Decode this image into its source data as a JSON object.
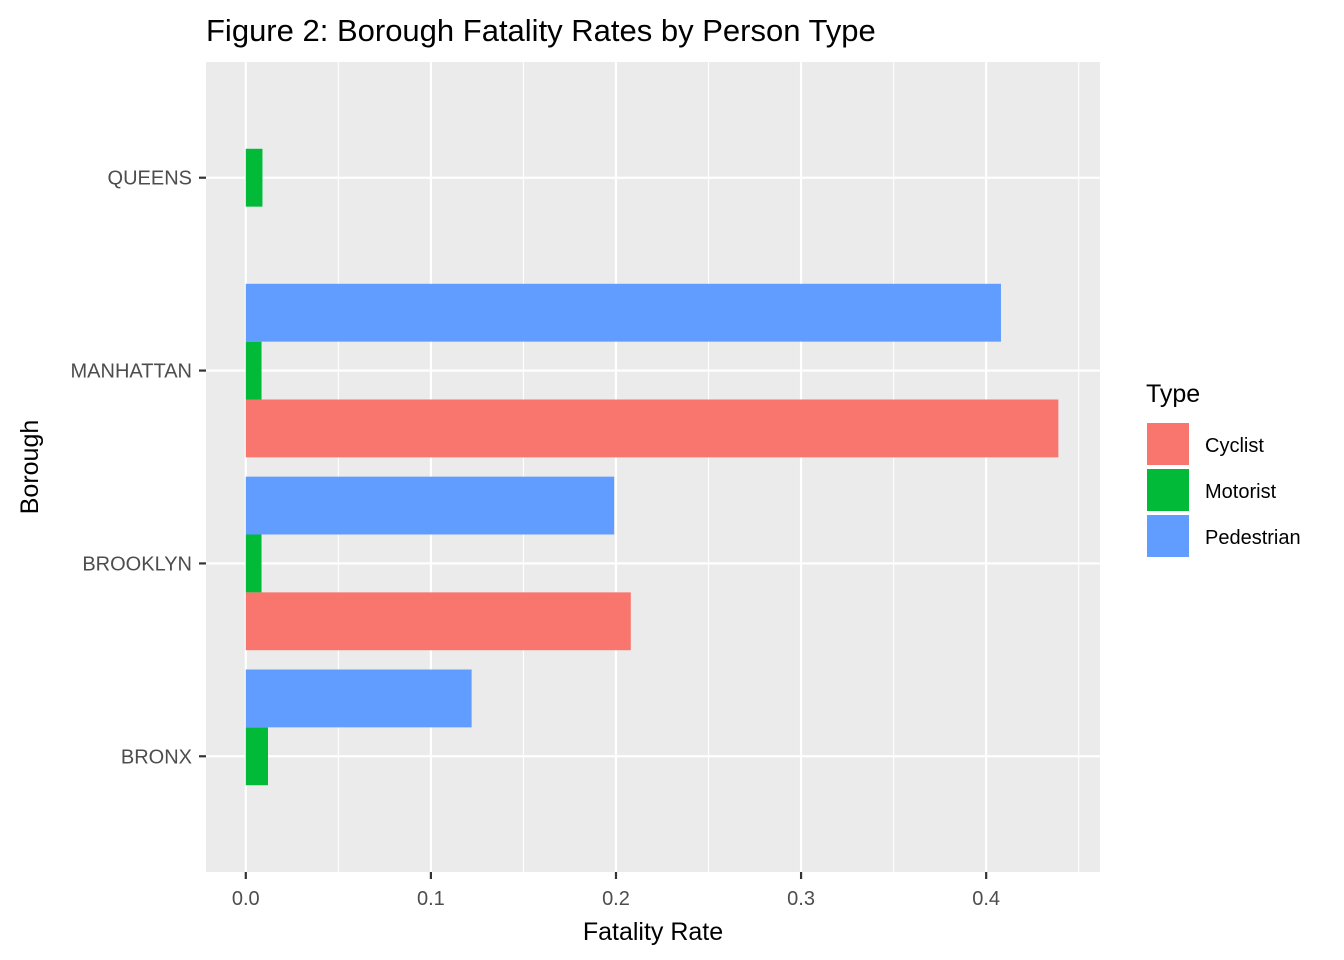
{
  "chart_data": {
    "type": "bar",
    "orientation": "horizontal",
    "title": "Figure 2: Borough Fatality Rates by Person Type",
    "xlabel": "Fatality Rate",
    "ylabel": "Borough",
    "xlim": [
      -0.0215,
      0.4615
    ],
    "x_ticks": [
      "0.0",
      "0.1",
      "0.2",
      "0.3",
      "0.4"
    ],
    "x_tick_values": [
      0,
      0.1,
      0.2,
      0.3,
      0.4
    ],
    "categories": [
      "BRONX",
      "BROOKLYN",
      "MANHATTAN",
      "QUEENS"
    ],
    "grid": true,
    "legend": {
      "title": "Type",
      "position": "right"
    },
    "series": [
      {
        "name": "Cyclist",
        "color": "#F8766D",
        "values": [
          null,
          0.208,
          0.439,
          null
        ]
      },
      {
        "name": "Motorist",
        "color": "#00BA38",
        "values": [
          0.012,
          0.0085,
          0.0085,
          0.009
        ]
      },
      {
        "name": "Pedestrian",
        "color": "#619CFF",
        "values": [
          0.122,
          0.199,
          0.408,
          null
        ]
      }
    ]
  }
}
